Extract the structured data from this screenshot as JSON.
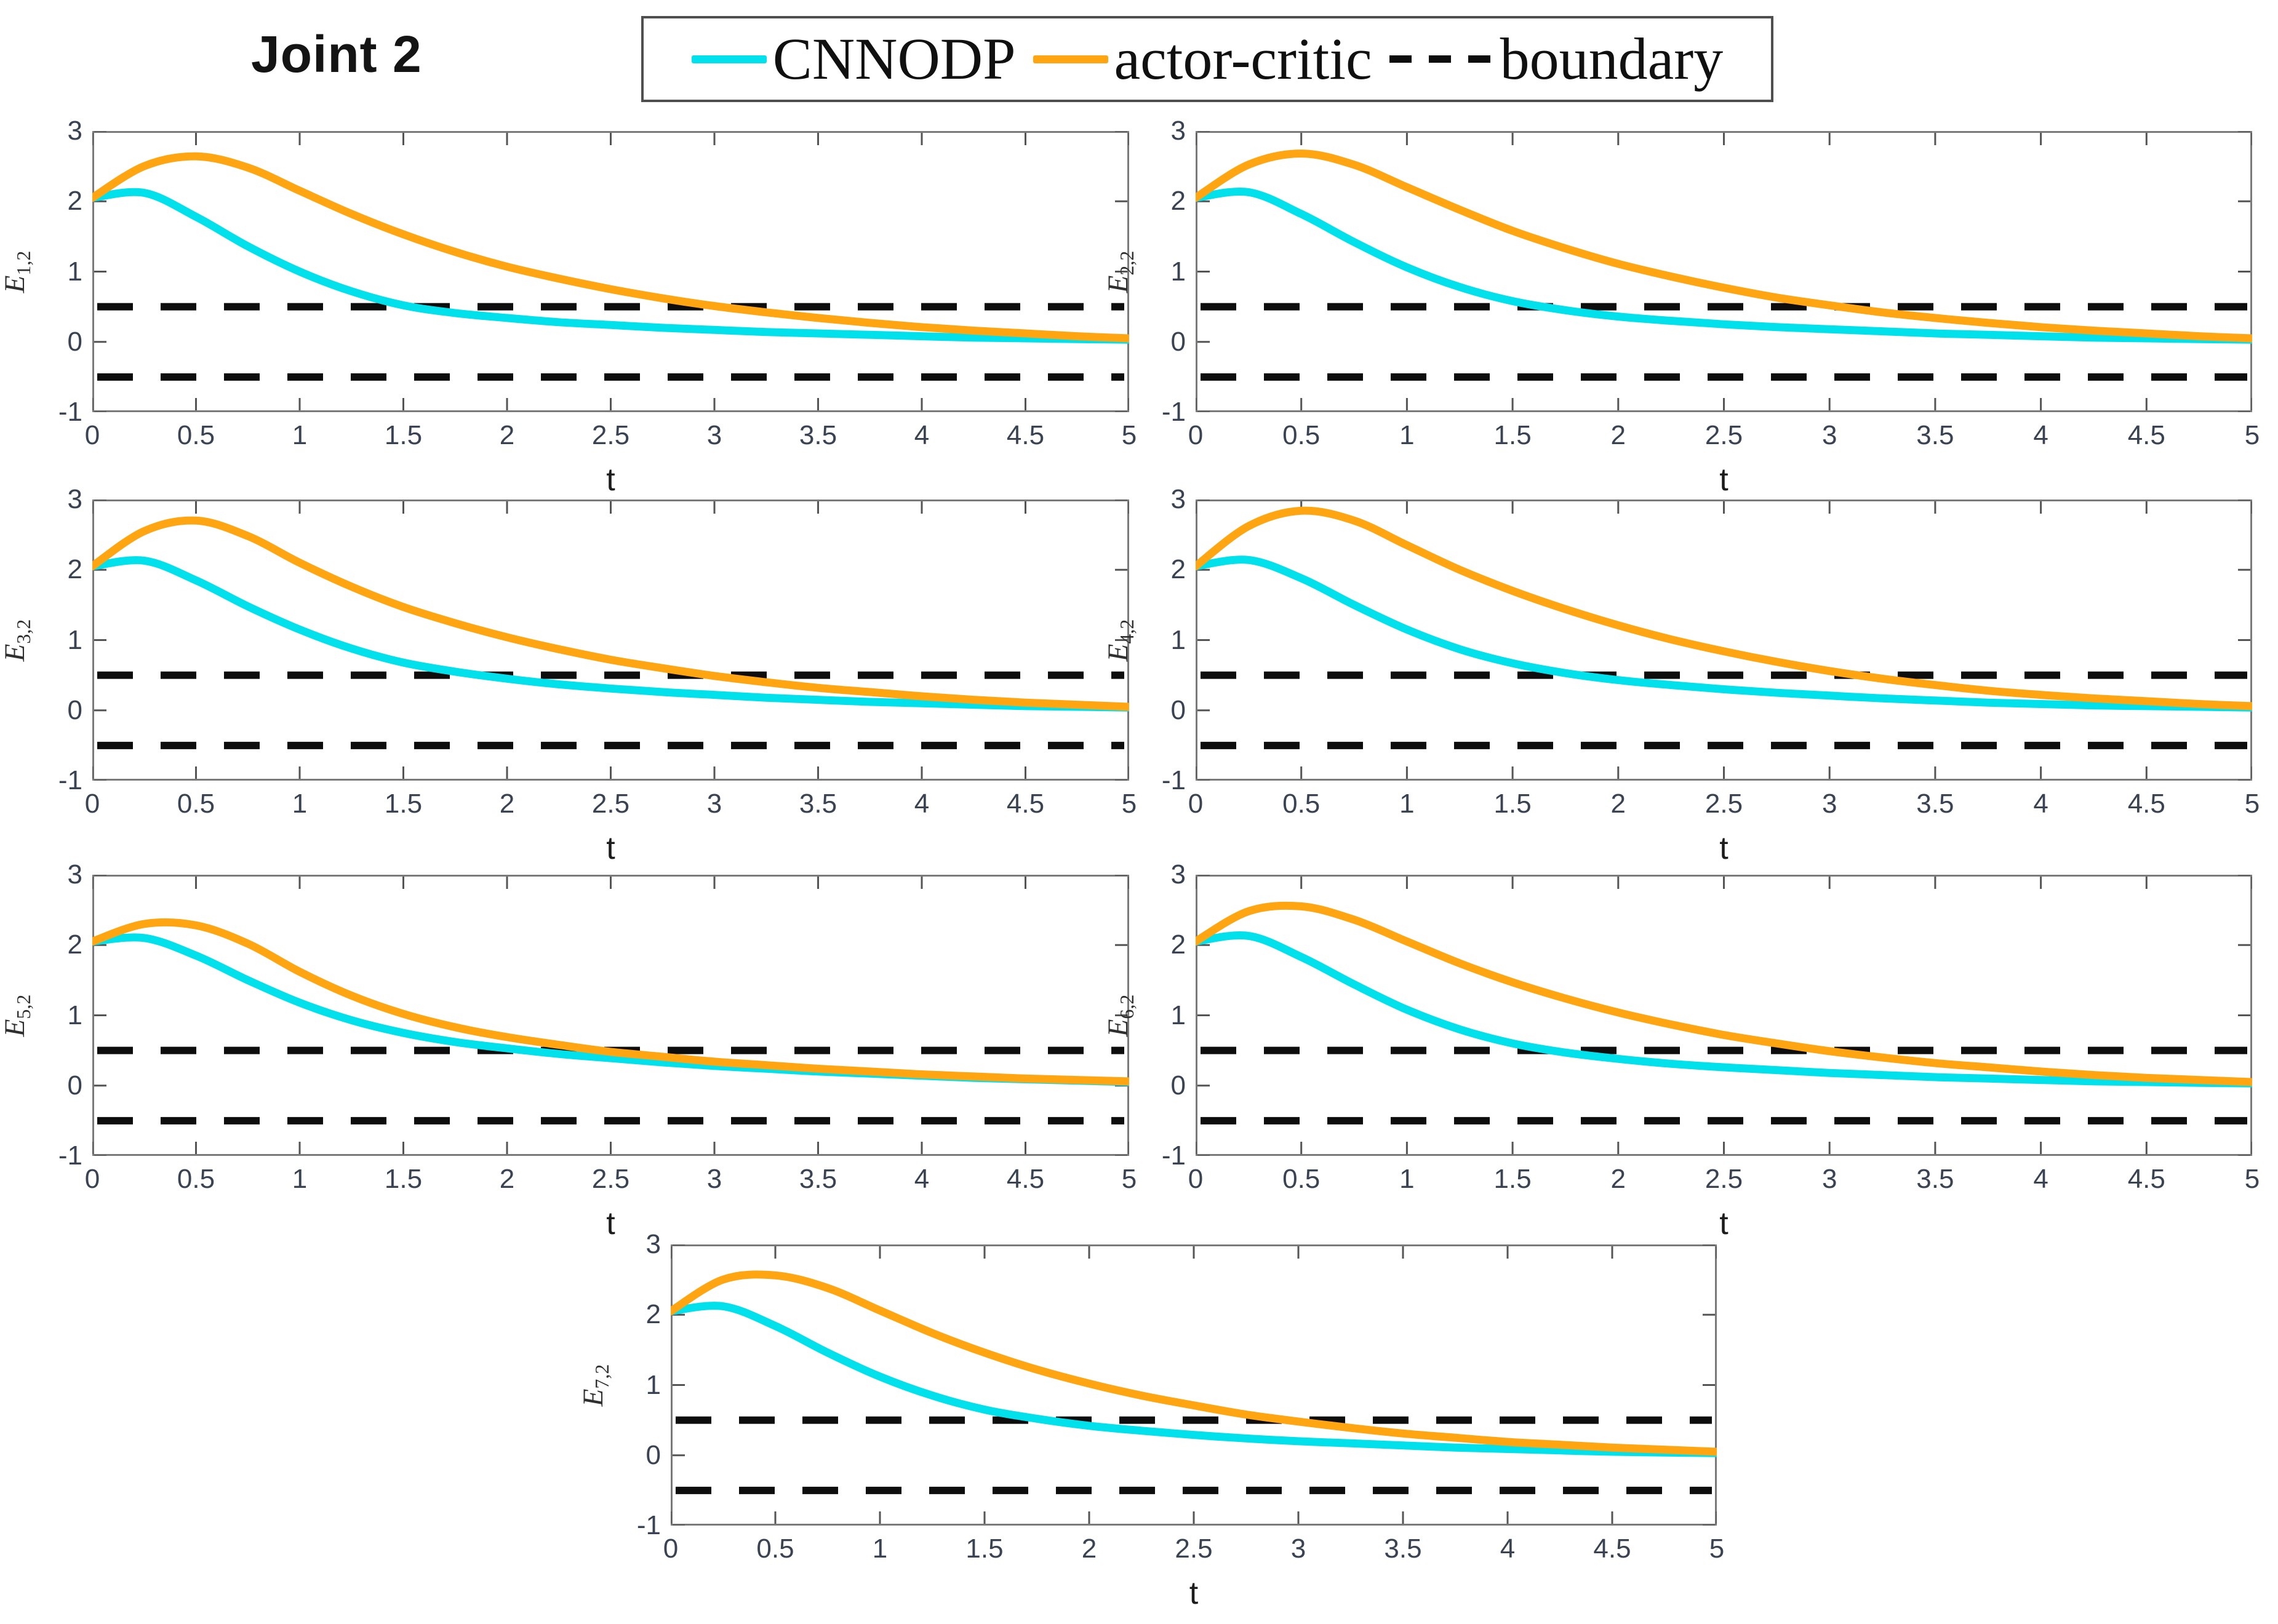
{
  "title": "Joint 2",
  "legend": {
    "items": [
      {
        "name": "CNNODP",
        "label": "CNNODP",
        "color": "#00E1EC",
        "style": "solid"
      },
      {
        "name": "actor-critic",
        "label": "actor-critic",
        "color": "#FFA512",
        "style": "solid"
      },
      {
        "name": "boundary",
        "label": "boundary",
        "color": "#0d0d0d",
        "style": "dashed"
      }
    ]
  },
  "chart_data": {
    "type": "line",
    "layout": "7 subplots: 3 rows x 2 columns plus 1 centered bottom subplot",
    "common": {
      "xlabel": "t",
      "xlim": [
        0,
        5
      ],
      "ylim": [
        -1,
        3
      ],
      "xtick_values": [
        0,
        0.5,
        1,
        1.5,
        2,
        2.5,
        3,
        3.5,
        4,
        4.5,
        5
      ],
      "xtick_labels": [
        "0",
        "0.5",
        "1",
        "1.5",
        "2",
        "2.5",
        "3",
        "3.5",
        "4",
        "4.5",
        "5"
      ],
      "ytick_values": [
        3,
        2,
        1,
        0,
        -1
      ],
      "ytick_labels": [
        "3",
        "2",
        "1",
        "0",
        "-1"
      ],
      "boundary_values": [
        0.5,
        -0.5
      ],
      "grid": false,
      "legend_position": "top-center",
      "x": [
        0,
        0.25,
        0.5,
        0.75,
        1,
        1.25,
        1.5,
        1.75,
        2,
        2.25,
        2.5,
        2.75,
        3,
        3.25,
        3.5,
        3.75,
        4,
        4.25,
        4.5,
        4.75,
        5
      ],
      "series_meta": [
        {
          "key": "cnnodp",
          "name": "CNNODP",
          "color": "#00E1EC"
        },
        {
          "key": "actor_critic",
          "name": "actor-critic",
          "color": "#FFA512"
        }
      ]
    },
    "subplots": [
      {
        "ylabel_main": "E",
        "ylabel_sub": "1,2",
        "series": {
          "cnnodp": [
            2.05,
            2.12,
            1.78,
            1.36,
            1.0,
            0.72,
            0.52,
            0.41,
            0.34,
            0.28,
            0.24,
            0.2,
            0.17,
            0.14,
            0.12,
            0.1,
            0.08,
            0.06,
            0.05,
            0.04,
            0.03
          ],
          "actor_critic": [
            2.05,
            2.5,
            2.64,
            2.48,
            2.15,
            1.82,
            1.53,
            1.28,
            1.07,
            0.9,
            0.75,
            0.62,
            0.51,
            0.42,
            0.34,
            0.27,
            0.21,
            0.16,
            0.12,
            0.08,
            0.05
          ]
        }
      },
      {
        "ylabel_main": "E",
        "ylabel_sub": "2,2",
        "series": {
          "cnnodp": [
            2.05,
            2.13,
            1.82,
            1.42,
            1.06,
            0.78,
            0.58,
            0.45,
            0.36,
            0.3,
            0.25,
            0.21,
            0.18,
            0.15,
            0.12,
            0.1,
            0.08,
            0.06,
            0.05,
            0.04,
            0.03
          ],
          "actor_critic": [
            2.05,
            2.52,
            2.68,
            2.52,
            2.2,
            1.88,
            1.58,
            1.33,
            1.11,
            0.93,
            0.77,
            0.63,
            0.52,
            0.42,
            0.34,
            0.27,
            0.21,
            0.16,
            0.12,
            0.08,
            0.05
          ]
        }
      },
      {
        "ylabel_main": "E",
        "ylabel_sub": "3,2",
        "series": {
          "cnnodp": [
            2.05,
            2.13,
            1.85,
            1.48,
            1.15,
            0.88,
            0.68,
            0.55,
            0.45,
            0.37,
            0.31,
            0.26,
            0.22,
            0.18,
            0.15,
            0.12,
            0.1,
            0.08,
            0.06,
            0.05,
            0.04
          ],
          "actor_critic": [
            2.05,
            2.55,
            2.7,
            2.48,
            2.1,
            1.76,
            1.47,
            1.24,
            1.04,
            0.87,
            0.72,
            0.6,
            0.49,
            0.4,
            0.32,
            0.26,
            0.2,
            0.15,
            0.11,
            0.08,
            0.05
          ]
        }
      },
      {
        "ylabel_main": "E",
        "ylabel_sub": "4,2",
        "series": {
          "cnnodp": [
            2.05,
            2.14,
            1.88,
            1.5,
            1.15,
            0.87,
            0.67,
            0.53,
            0.43,
            0.36,
            0.3,
            0.25,
            0.21,
            0.17,
            0.14,
            0.11,
            0.09,
            0.07,
            0.06,
            0.05,
            0.04
          ],
          "actor_critic": [
            2.05,
            2.62,
            2.84,
            2.7,
            2.35,
            2.0,
            1.7,
            1.44,
            1.21,
            1.01,
            0.84,
            0.69,
            0.56,
            0.45,
            0.36,
            0.28,
            0.22,
            0.17,
            0.13,
            0.09,
            0.06
          ]
        }
      },
      {
        "ylabel_main": "E",
        "ylabel_sub": "5,2",
        "series": {
          "cnnodp": [
            2.05,
            2.1,
            1.85,
            1.5,
            1.18,
            0.93,
            0.75,
            0.62,
            0.53,
            0.45,
            0.39,
            0.33,
            0.28,
            0.24,
            0.2,
            0.17,
            0.14,
            0.11,
            0.09,
            0.07,
            0.05
          ],
          "actor_critic": [
            2.05,
            2.3,
            2.28,
            2.02,
            1.62,
            1.28,
            1.02,
            0.83,
            0.69,
            0.58,
            0.48,
            0.41,
            0.34,
            0.29,
            0.24,
            0.2,
            0.16,
            0.13,
            0.1,
            0.08,
            0.06
          ]
        }
      },
      {
        "ylabel_main": "E",
        "ylabel_sub": "6,2",
        "series": {
          "cnnodp": [
            2.05,
            2.13,
            1.83,
            1.44,
            1.08,
            0.8,
            0.6,
            0.47,
            0.38,
            0.31,
            0.26,
            0.22,
            0.18,
            0.15,
            0.12,
            0.1,
            0.08,
            0.06,
            0.05,
            0.04,
            0.03
          ],
          "actor_critic": [
            2.05,
            2.48,
            2.55,
            2.36,
            2.05,
            1.74,
            1.47,
            1.24,
            1.04,
            0.87,
            0.72,
            0.6,
            0.49,
            0.4,
            0.32,
            0.26,
            0.2,
            0.15,
            0.11,
            0.08,
            0.05
          ]
        }
      },
      {
        "ylabel_main": "E",
        "ylabel_sub": "7,2",
        "series": {
          "cnnodp": [
            2.05,
            2.12,
            1.84,
            1.46,
            1.12,
            0.85,
            0.65,
            0.52,
            0.42,
            0.35,
            0.29,
            0.24,
            0.2,
            0.17,
            0.14,
            0.11,
            0.09,
            0.07,
            0.05,
            0.04,
            0.03
          ],
          "actor_critic": [
            2.05,
            2.5,
            2.56,
            2.38,
            2.06,
            1.74,
            1.46,
            1.22,
            1.02,
            0.85,
            0.71,
            0.58,
            0.48,
            0.39,
            0.31,
            0.25,
            0.19,
            0.15,
            0.11,
            0.08,
            0.05
          ]
        }
      }
    ]
  },
  "style": {
    "curve_width": 13,
    "boundary_width": 12,
    "frame_color": "#7a7a7a",
    "tick_color": "#555555",
    "tick_label_color": "#3a4353"
  }
}
